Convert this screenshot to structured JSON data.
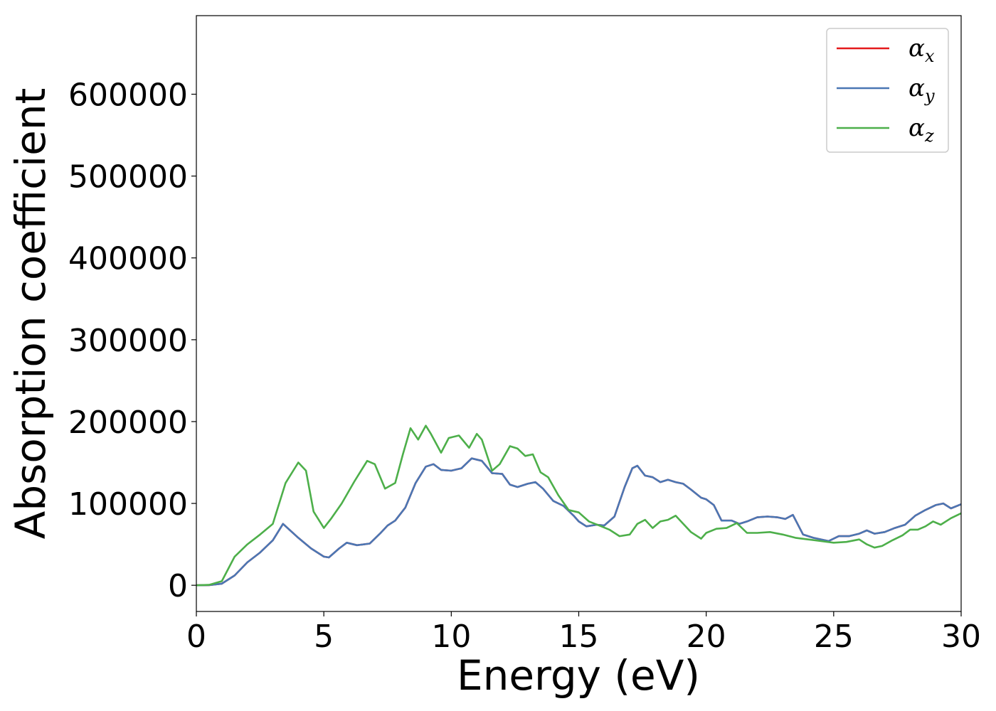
{
  "chart_data": {
    "type": "line",
    "xlabel": "Energy (eV)",
    "ylabel": "Absorption coefficient",
    "xlim": [
      0,
      30
    ],
    "ylim": [
      -32000,
      696000
    ],
    "xticks": [
      0,
      5,
      10,
      15,
      20,
      25,
      30
    ],
    "yticks": [
      0,
      100000,
      200000,
      300000,
      400000,
      500000,
      600000
    ],
    "grid": false,
    "legend_position": "top-right",
    "series": [
      {
        "name_base": "α",
        "name_sub": "x",
        "color": "#e41a1c",
        "x": [
          0,
          0.5,
          1,
          1.5,
          2,
          2.5,
          3,
          3.4,
          4,
          4.5,
          5,
          5.2,
          5.6,
          5.9,
          6.3,
          6.8,
          7.2,
          7.5,
          7.8,
          8.2,
          8.6,
          9,
          9.3,
          9.6,
          10,
          10.4,
          10.8,
          11.2,
          11.6,
          12,
          12.3,
          12.6,
          13,
          13.3,
          13.6,
          14,
          14.4,
          14.8,
          15,
          15.3,
          15.7,
          16,
          16.4,
          16.8,
          17.1,
          17.3,
          17.6,
          17.9,
          18.2,
          18.5,
          18.8,
          19.1,
          19.4,
          19.8,
          20,
          20.3,
          20.6,
          21,
          21.3,
          21.6,
          22,
          22.4,
          22.8,
          23.1,
          23.4,
          23.8,
          24.2,
          24.8,
          25.2,
          25.6,
          26,
          26.3,
          26.6,
          27,
          27.4,
          27.8,
          28.2,
          28.6,
          29,
          29.3,
          29.6,
          30
        ],
        "y": [
          0,
          200,
          2000,
          12000,
          28000,
          40000,
          55000,
          75000,
          58000,
          45000,
          35000,
          34000,
          45000,
          52000,
          49000,
          51000,
          63000,
          73000,
          79000,
          95000,
          125000,
          145000,
          148000,
          141000,
          140000,
          143000,
          155000,
          152000,
          137000,
          136000,
          123000,
          120000,
          124000,
          126000,
          118000,
          103000,
          97000,
          85000,
          78000,
          72000,
          74000,
          73000,
          84000,
          120000,
          143000,
          146000,
          134000,
          132000,
          126000,
          129000,
          126000,
          124000,
          117000,
          107000,
          105000,
          98000,
          79000,
          79000,
          75000,
          78000,
          83000,
          84000,
          83000,
          81000,
          86000,
          62000,
          58000,
          54000,
          60000,
          60000,
          63000,
          67000,
          63000,
          65000,
          70000,
          74000,
          85000,
          92000,
          98000,
          100000,
          94000,
          99000
        ]
      },
      {
        "name_base": "α",
        "name_sub": "y",
        "color": "#4a77b4",
        "x": [
          0,
          0.5,
          1,
          1.5,
          2,
          2.5,
          3,
          3.4,
          4,
          4.5,
          5,
          5.2,
          5.6,
          5.9,
          6.3,
          6.8,
          7.2,
          7.5,
          7.8,
          8.2,
          8.6,
          9,
          9.3,
          9.6,
          10,
          10.4,
          10.8,
          11.2,
          11.6,
          12,
          12.3,
          12.6,
          13,
          13.3,
          13.6,
          14,
          14.4,
          14.8,
          15,
          15.3,
          15.7,
          16,
          16.4,
          16.8,
          17.1,
          17.3,
          17.6,
          17.9,
          18.2,
          18.5,
          18.8,
          19.1,
          19.4,
          19.8,
          20,
          20.3,
          20.6,
          21,
          21.3,
          21.6,
          22,
          22.4,
          22.8,
          23.1,
          23.4,
          23.8,
          24.2,
          24.8,
          25.2,
          25.6,
          26,
          26.3,
          26.6,
          27,
          27.4,
          27.8,
          28.2,
          28.6,
          29,
          29.3,
          29.6,
          30
        ],
        "y": [
          0,
          200,
          2000,
          12000,
          28000,
          40000,
          55000,
          75000,
          58000,
          45000,
          35000,
          34000,
          45000,
          52000,
          49000,
          51000,
          63000,
          73000,
          79000,
          95000,
          125000,
          145000,
          148000,
          141000,
          140000,
          143000,
          155000,
          152000,
          137000,
          136000,
          123000,
          120000,
          124000,
          126000,
          118000,
          103000,
          97000,
          85000,
          78000,
          72000,
          74000,
          73000,
          84000,
          120000,
          143000,
          146000,
          134000,
          132000,
          126000,
          129000,
          126000,
          124000,
          117000,
          107000,
          105000,
          98000,
          79000,
          79000,
          75000,
          78000,
          83000,
          84000,
          83000,
          81000,
          86000,
          62000,
          58000,
          54000,
          60000,
          60000,
          63000,
          67000,
          63000,
          65000,
          70000,
          74000,
          85000,
          92000,
          98000,
          100000,
          94000,
          99000
        ]
      },
      {
        "name_base": "α",
        "name_sub": "z",
        "color": "#4daf4a",
        "x": [
          0,
          0.5,
          1,
          1.5,
          2,
          2.5,
          3,
          3.5,
          4,
          4.3,
          4.6,
          5,
          5.3,
          5.7,
          6.2,
          6.7,
          7,
          7.4,
          7.8,
          8.1,
          8.4,
          8.7,
          9,
          9.2,
          9.6,
          9.9,
          10.3,
          10.7,
          11,
          11.2,
          11.6,
          11.9,
          12.3,
          12.6,
          12.9,
          13.2,
          13.5,
          13.8,
          14.2,
          14.6,
          15,
          15.4,
          15.8,
          16.2,
          16.6,
          17,
          17.3,
          17.6,
          17.9,
          18.2,
          18.5,
          18.8,
          19.1,
          19.4,
          19.8,
          20,
          20.4,
          20.8,
          21.2,
          21.6,
          22,
          22.5,
          23,
          23.5,
          24,
          24.5,
          25,
          25.5,
          26,
          26.3,
          26.6,
          26.9,
          27.3,
          27.7,
          28,
          28.3,
          28.6,
          28.9,
          29.2,
          29.6,
          30
        ],
        "y": [
          0,
          500,
          5000,
          35000,
          50000,
          62000,
          75000,
          125000,
          150000,
          140000,
          90000,
          70000,
          82000,
          100000,
          127000,
          152000,
          148000,
          118000,
          125000,
          160000,
          192000,
          178000,
          195000,
          185000,
          162000,
          180000,
          183000,
          168000,
          185000,
          178000,
          140000,
          148000,
          170000,
          167000,
          158000,
          160000,
          138000,
          132000,
          110000,
          92000,
          89000,
          78000,
          73000,
          68000,
          60000,
          62000,
          75000,
          80000,
          70000,
          78000,
          80000,
          85000,
          75000,
          65000,
          57000,
          64000,
          69000,
          70000,
          76000,
          64000,
          64000,
          65000,
          62000,
          58000,
          56000,
          54000,
          52000,
          53000,
          56000,
          50000,
          46000,
          48000,
          55000,
          61000,
          68000,
          68000,
          72000,
          78000,
          74000,
          82000,
          88000
        ]
      }
    ]
  }
}
